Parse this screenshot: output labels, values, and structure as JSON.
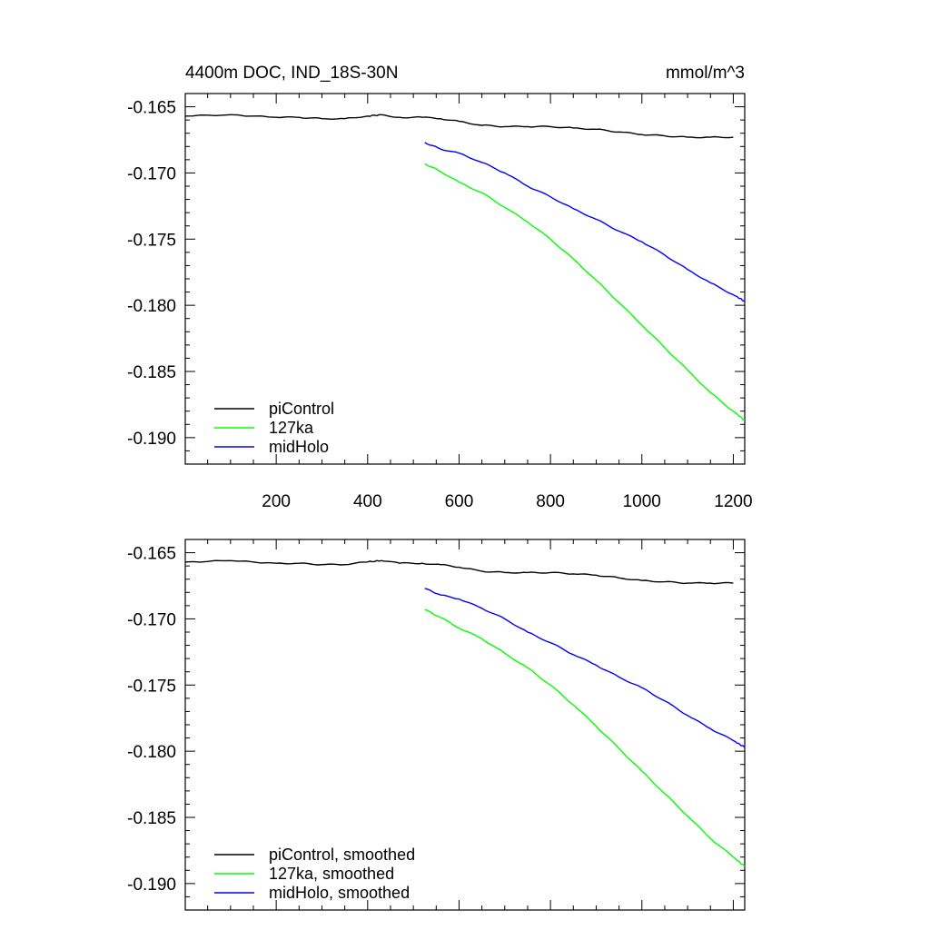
{
  "chart_data": [
    {
      "type": "line",
      "title": "4400m DOC, IND_18S-30N",
      "units": "mmol/m^3",
      "xlim": [
        1,
        1225
      ],
      "ylim": [
        -0.192,
        -0.164
      ],
      "xticks": [
        200,
        400,
        600,
        800,
        1000,
        1200
      ],
      "xtick_labels": [
        "200",
        "400",
        "600",
        "800",
        "1000",
        "1200"
      ],
      "yticks": [
        -0.165,
        -0.17,
        -0.175,
        -0.18,
        -0.185,
        -0.19
      ],
      "ytick_labels": [
        "-0.165",
        "-0.170",
        "-0.175",
        "-0.180",
        "-0.185",
        "-0.190"
      ],
      "legend_position": "bottom-left",
      "series": [
        {
          "name": "piControl",
          "color": "#000000",
          "x": [
            1,
            100,
            200,
            250,
            300,
            350,
            400,
            430,
            470,
            520,
            560,
            600,
            650,
            700,
            750,
            800,
            850,
            900,
            950,
            1000,
            1050,
            1100,
            1150,
            1200
          ],
          "values": [
            -0.1657,
            -0.1656,
            -0.1658,
            -0.1658,
            -0.1659,
            -0.1659,
            -0.1657,
            -0.1656,
            -0.1658,
            -0.1658,
            -0.1659,
            -0.1661,
            -0.1664,
            -0.1665,
            -0.1665,
            -0.1665,
            -0.1666,
            -0.1667,
            -0.1669,
            -0.1671,
            -0.1672,
            -0.1673,
            -0.1673,
            -0.1673
          ]
        },
        {
          "name": "127ka",
          "color": "#00ff00",
          "x": [
            525,
            560,
            600,
            650,
            700,
            750,
            800,
            850,
            900,
            950,
            1000,
            1050,
            1100,
            1150,
            1200,
            1225
          ],
          "values": [
            -0.1693,
            -0.1699,
            -0.1707,
            -0.1715,
            -0.1726,
            -0.1737,
            -0.175,
            -0.1765,
            -0.1781,
            -0.1798,
            -0.1815,
            -0.1832,
            -0.1849,
            -0.1866,
            -0.188,
            -0.1887
          ]
        },
        {
          "name": "midHolo",
          "color": "#0000ff",
          "x": [
            525,
            560,
            600,
            650,
            700,
            750,
            800,
            850,
            900,
            950,
            1000,
            1050,
            1100,
            1150,
            1200,
            1225
          ],
          "values": [
            -0.1677,
            -0.1682,
            -0.1685,
            -0.1692,
            -0.17,
            -0.171,
            -0.1718,
            -0.1727,
            -0.1735,
            -0.1744,
            -0.1752,
            -0.1762,
            -0.1773,
            -0.1783,
            -0.1792,
            -0.1797
          ]
        }
      ]
    },
    {
      "type": "line",
      "xlim": [
        1,
        1225
      ],
      "ylim": [
        -0.192,
        -0.164
      ],
      "xticks": [
        200,
        400,
        600,
        800,
        1000,
        1200
      ],
      "yticks": [
        -0.165,
        -0.17,
        -0.175,
        -0.18,
        -0.185,
        -0.19
      ],
      "ytick_labels": [
        "-0.165",
        "-0.170",
        "-0.175",
        "-0.180",
        "-0.185",
        "-0.190"
      ],
      "legend_position": "bottom-left",
      "series": [
        {
          "name": "piControl, smoothed",
          "color": "#000000",
          "x": [
            1,
            100,
            200,
            250,
            300,
            350,
            400,
            430,
            470,
            520,
            560,
            600,
            650,
            700,
            750,
            800,
            850,
            900,
            950,
            1000,
            1050,
            1100,
            1150,
            1200
          ],
          "values": [
            -0.1657,
            -0.1656,
            -0.1658,
            -0.1658,
            -0.1659,
            -0.1659,
            -0.1657,
            -0.1656,
            -0.1658,
            -0.1658,
            -0.1659,
            -0.1661,
            -0.1664,
            -0.1665,
            -0.1665,
            -0.1665,
            -0.1666,
            -0.1667,
            -0.1669,
            -0.1671,
            -0.1672,
            -0.1673,
            -0.1673,
            -0.1673
          ]
        },
        {
          "name": "127ka, smoothed",
          "color": "#00ff00",
          "x": [
            525,
            560,
            600,
            650,
            700,
            750,
            800,
            850,
            900,
            950,
            1000,
            1050,
            1100,
            1150,
            1200,
            1225
          ],
          "values": [
            -0.1693,
            -0.1699,
            -0.1707,
            -0.1715,
            -0.1726,
            -0.1737,
            -0.175,
            -0.1765,
            -0.1781,
            -0.1798,
            -0.1815,
            -0.1832,
            -0.1849,
            -0.1866,
            -0.188,
            -0.1887
          ]
        },
        {
          "name": "midHolo, smoothed",
          "color": "#0000ff",
          "x": [
            525,
            560,
            600,
            650,
            700,
            750,
            800,
            850,
            900,
            950,
            1000,
            1050,
            1100,
            1150,
            1200,
            1225
          ],
          "values": [
            -0.1677,
            -0.1682,
            -0.1685,
            -0.1692,
            -0.17,
            -0.171,
            -0.1718,
            -0.1727,
            -0.1735,
            -0.1744,
            -0.1752,
            -0.1762,
            -0.1773,
            -0.1783,
            -0.1792,
            -0.1797
          ]
        }
      ]
    }
  ]
}
